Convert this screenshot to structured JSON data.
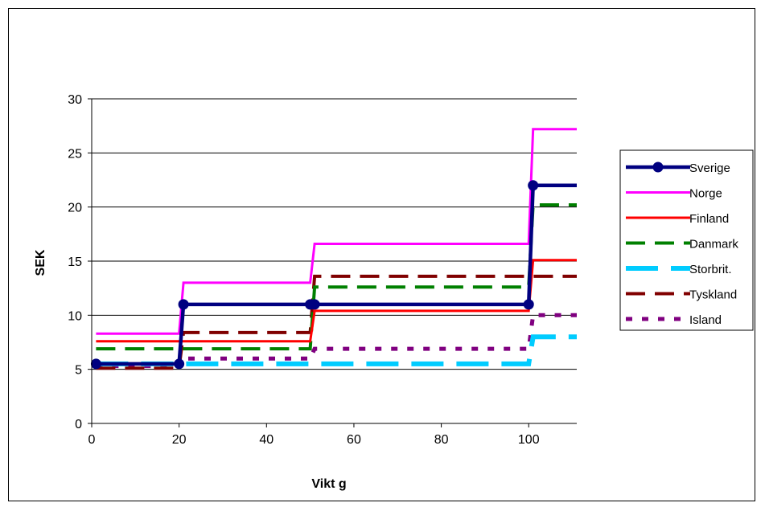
{
  "chart_data": {
    "type": "line",
    "xlabel": "Vikt g",
    "ylabel": "SEK",
    "xlim": [
      0,
      111
    ],
    "ylim": [
      0,
      30
    ],
    "x_ticks": [
      "0",
      "20",
      "40",
      "60",
      "80",
      "100"
    ],
    "y_ticks": [
      "0",
      "5",
      "10",
      "15",
      "20",
      "25",
      "30"
    ],
    "grid": "horizontal",
    "legend_position": "right",
    "series": [
      {
        "name": "Sverige",
        "color": "#000080",
        "style": "solid-markers",
        "points": [
          [
            1,
            5.5
          ],
          [
            20,
            5.5
          ],
          [
            21,
            11
          ],
          [
            50,
            11
          ],
          [
            51,
            11
          ],
          [
            100,
            11
          ],
          [
            101,
            22
          ],
          [
            111,
            22
          ]
        ],
        "markers": [
          [
            1,
            5.5
          ],
          [
            20,
            5.5
          ],
          [
            21,
            11
          ],
          [
            50,
            11
          ],
          [
            51,
            11
          ],
          [
            100,
            11
          ],
          [
            101,
            22
          ]
        ]
      },
      {
        "name": "Norge",
        "color": "#ff00ff",
        "style": "solid",
        "points": [
          [
            1,
            8.3
          ],
          [
            20,
            8.3
          ],
          [
            21,
            13
          ],
          [
            50,
            13
          ],
          [
            51,
            16.6
          ],
          [
            100,
            16.6
          ],
          [
            101,
            27.2
          ],
          [
            111,
            27.2
          ]
        ]
      },
      {
        "name": "Finland",
        "color": "#ff0000",
        "style": "solid",
        "points": [
          [
            1,
            7.6
          ],
          [
            20,
            7.6
          ],
          [
            21,
            7.6
          ],
          [
            50,
            7.6
          ],
          [
            51,
            10.4
          ],
          [
            100,
            10.4
          ],
          [
            101,
            15.1
          ],
          [
            111,
            15.1
          ]
        ]
      },
      {
        "name": "Danmark",
        "color": "#008000",
        "style": "dash",
        "points": [
          [
            1,
            6.9
          ],
          [
            20,
            6.9
          ],
          [
            21,
            6.9
          ],
          [
            50,
            6.9
          ],
          [
            51,
            12.6
          ],
          [
            100,
            12.6
          ],
          [
            101,
            20.2
          ],
          [
            111,
            20.2
          ]
        ]
      },
      {
        "name": "Storbrit.",
        "color": "#00ccff",
        "style": "dash-thick",
        "points": [
          [
            1,
            5.5
          ],
          [
            20,
            5.5
          ],
          [
            21,
            5.5
          ],
          [
            50,
            5.5
          ],
          [
            51,
            5.5
          ],
          [
            100,
            5.5
          ],
          [
            101,
            8.0
          ],
          [
            111,
            8.0
          ]
        ]
      },
      {
        "name": "Tyskland",
        "color": "#800000",
        "style": "dash",
        "points": [
          [
            1,
            5.1
          ],
          [
            20,
            5.1
          ],
          [
            21,
            8.4
          ],
          [
            50,
            8.4
          ],
          [
            51,
            13.6
          ],
          [
            100,
            13.6
          ],
          [
            101,
            13.6
          ],
          [
            111,
            13.6
          ]
        ]
      },
      {
        "name": "Island",
        "color": "#800080",
        "style": "dot",
        "points": [
          [
            1,
            5.3
          ],
          [
            20,
            5.3
          ],
          [
            21,
            6.0
          ],
          [
            50,
            6.0
          ],
          [
            51,
            6.9
          ],
          [
            100,
            6.9
          ],
          [
            101,
            10.0
          ],
          [
            111,
            10.0
          ]
        ]
      }
    ]
  }
}
